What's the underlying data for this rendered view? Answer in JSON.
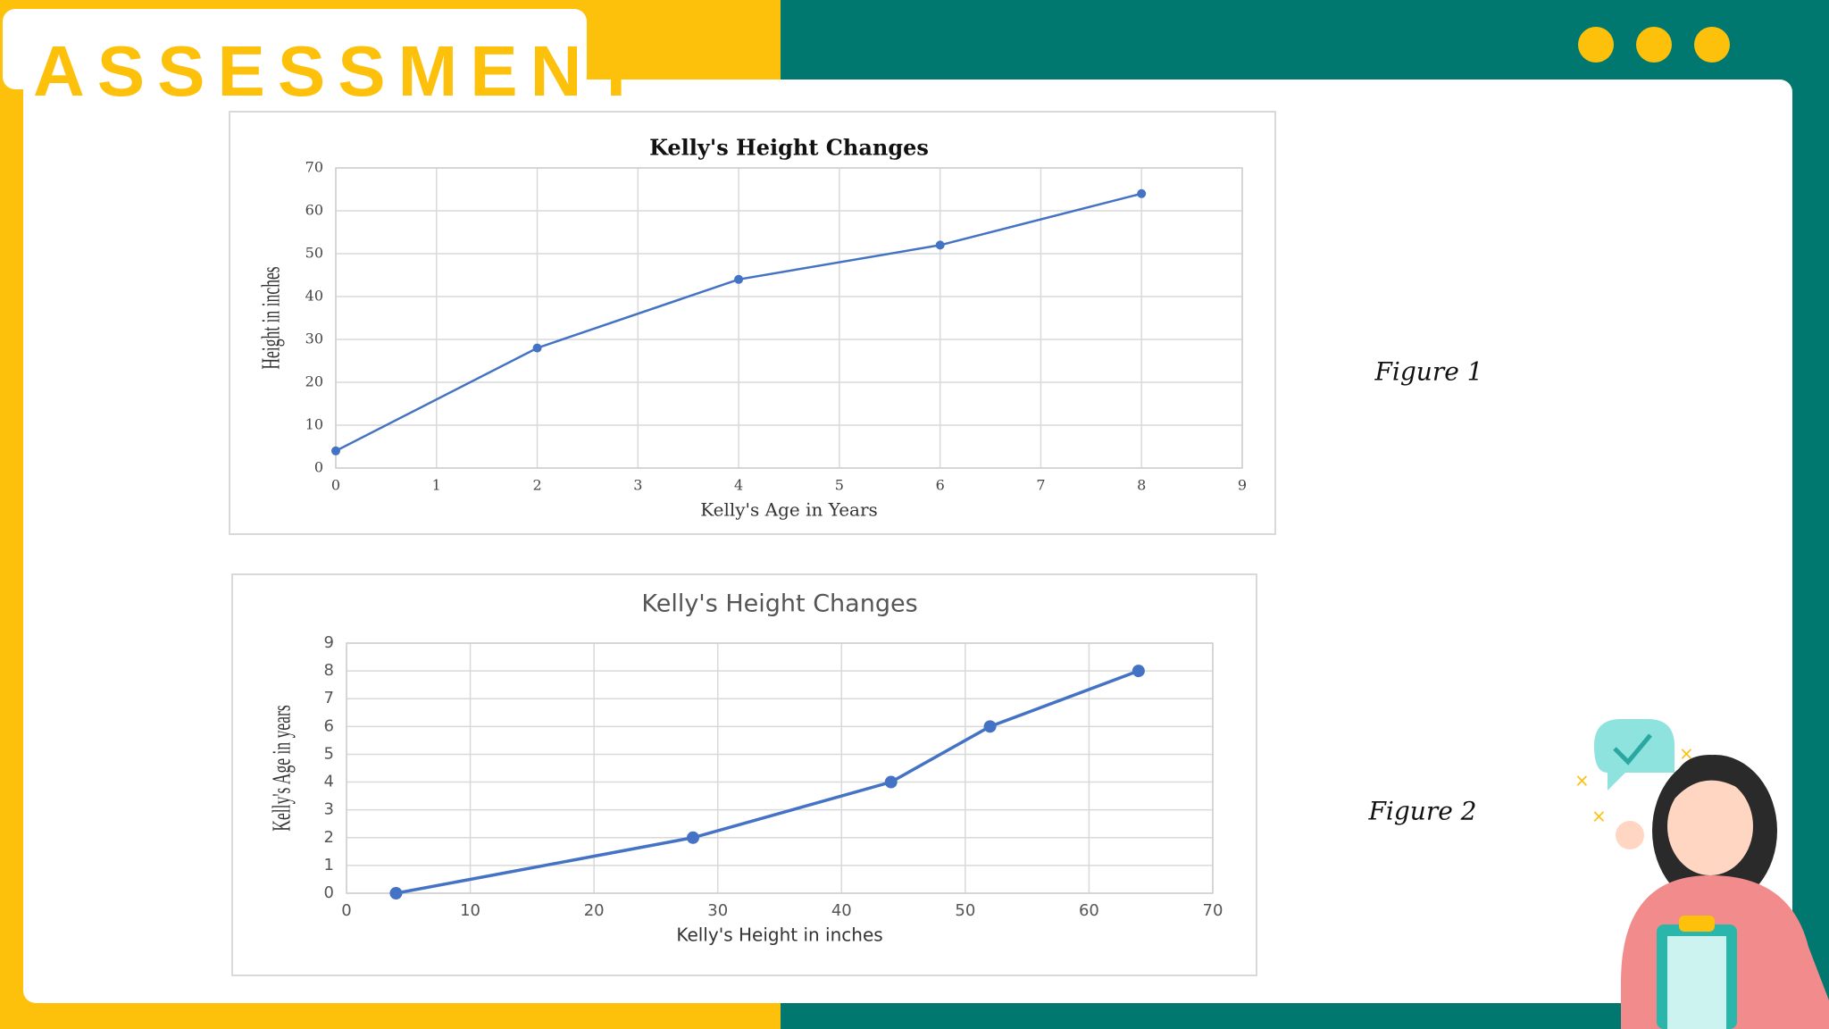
{
  "header": {
    "title": "ASSESSMENT"
  },
  "figure_labels": [
    "Figure 1",
    "Figure 2"
  ],
  "chart_data": [
    {
      "type": "line",
      "title": "Kelly's Height Changes",
      "x_label": "Kelly's Age in Years",
      "y_label": "Height in inches",
      "x": [
        0,
        2,
        4,
        6,
        8
      ],
      "series": [
        {
          "color": "#4472c4",
          "values": [
            4,
            28,
            44,
            52,
            64
          ]
        }
      ],
      "xlim": [
        0,
        9
      ],
      "xticks": [
        0,
        1,
        2,
        3,
        4,
        5,
        6,
        7,
        8,
        9
      ],
      "ylim": [
        0,
        70
      ],
      "yticks": [
        0,
        10,
        20,
        30,
        40,
        50,
        60,
        70
      ],
      "grid": true
    },
    {
      "type": "line",
      "title": "Kelly's Height Changes",
      "x_label": "Kelly's Height in inches",
      "y_label": "Kelly's Age in years",
      "x": [
        4,
        28,
        44,
        52,
        64
      ],
      "series": [
        {
          "color": "#4472c4",
          "values": [
            0,
            2,
            4,
            6,
            8
          ]
        }
      ],
      "xlim": [
        0,
        70
      ],
      "xticks": [
        0,
        10,
        20,
        30,
        40,
        50,
        60,
        70
      ],
      "ylim": [
        0,
        9
      ],
      "yticks": [
        0,
        1,
        2,
        3,
        4,
        5,
        6,
        7,
        8,
        9
      ],
      "grid": true
    }
  ]
}
